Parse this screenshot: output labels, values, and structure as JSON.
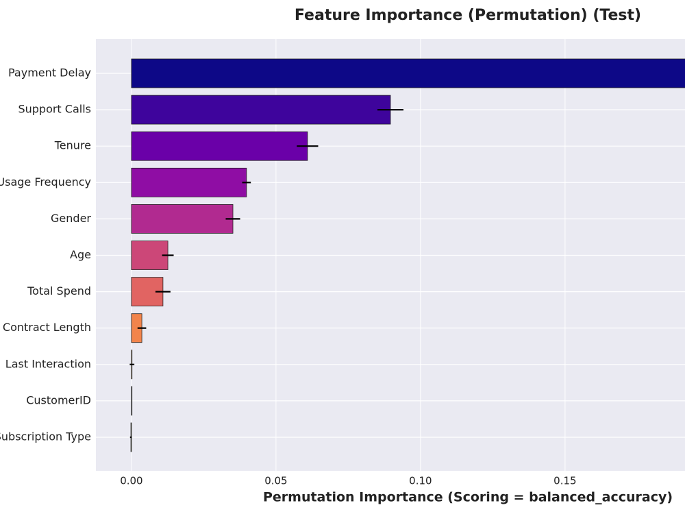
{
  "chart_data": {
    "type": "bar",
    "orientation": "horizontal",
    "title": "Feature Importance (Permutation) (Test)",
    "x_label": "Permutation Importance (Scoring = balanced_accuracy)",
    "categories": [
      "Payment Delay",
      "Support Calls",
      "Tenure",
      "Usage Frequency",
      "Gender",
      "Age",
      "Total Spend",
      "Contract Length",
      "Last Interaction",
      "CustomerID",
      "Subscription Type"
    ],
    "values": [
      0.21,
      0.0896,
      0.0609,
      0.0398,
      0.0351,
      0.0126,
      0.0109,
      0.0036,
      0.0002,
      0,
      -0.0002
    ],
    "errors": [
      0.004,
      0.0045,
      0.0037,
      0.0015,
      0.0025,
      0.002,
      0.0026,
      0.0015,
      0.0008,
      0,
      0.0003
    ],
    "colors": [
      "#0d0887",
      "#3e049c",
      "#6a00a8",
      "#8f0da4",
      "#b12a90",
      "#cc4778",
      "#e16462",
      "#f2844b",
      "#fca636",
      "#fcce25",
      "#f0f921"
    ],
    "xlim": [
      -0.0123,
      0.1915
    ],
    "xticks": [
      {
        "value": 0,
        "label": "0.00"
      },
      {
        "value": 0.05,
        "label": "0.05"
      },
      {
        "value": 0.1,
        "label": "0.10"
      },
      {
        "value": 0.15,
        "label": "0.15"
      }
    ],
    "grid": true
  }
}
